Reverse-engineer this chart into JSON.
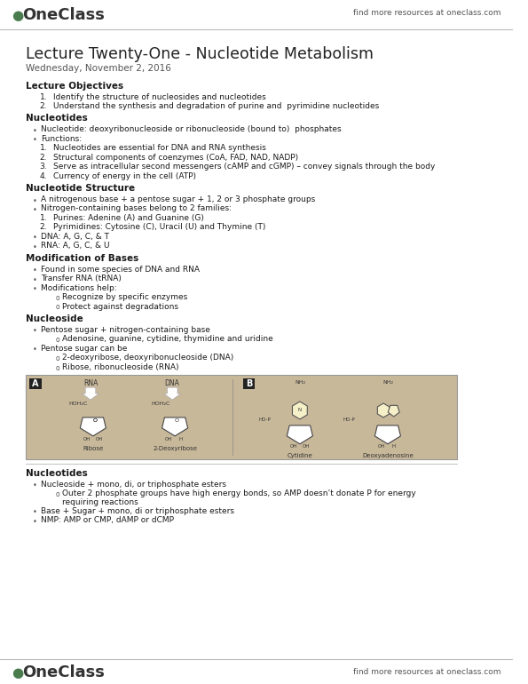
{
  "title": "Lecture Twenty-One - Nucleotide Metabolism",
  "date": "Wednesday, November 2, 2016",
  "header_right": "find more resources at oneclass.com",
  "footer_right": "find more resources at oneclass.com",
  "bg_color": "#ffffff",
  "text_color": "#1a1a1a",
  "logo_color": "#4a7c4e",
  "image_bg": "#c8b89a",
  "sections": [
    {
      "heading": "Lecture Objectives",
      "items": [
        {
          "type": "numbered",
          "num": "1.",
          "text": "Identify the structure of nucleosides and nucleotides"
        },
        {
          "type": "numbered",
          "num": "2.",
          "text": "Understand the synthesis and degradation of purine and  pyrimidine nucleotides"
        }
      ]
    },
    {
      "heading": "Nucleotides",
      "items": [
        {
          "type": "bullet",
          "text": "Nucleotide: deoxyribonucleoside or ribonucleoside (bound to)  phosphates"
        },
        {
          "type": "bullet",
          "text": "Functions:"
        },
        {
          "type": "numbered",
          "num": "1.",
          "text": "Nucleotides are essential for DNA and RNA synthesis"
        },
        {
          "type": "numbered",
          "num": "2.",
          "text": "Structural components of coenzymes (CoA, FAD, NAD, NADP)"
        },
        {
          "type": "numbered",
          "num": "3.",
          "text": "Serve as intracellular second messengers (cAMP and cGMP) – convey signals through the body"
        },
        {
          "type": "numbered",
          "num": "4.",
          "text": "Currency of energy in the cell (ATP)"
        }
      ]
    },
    {
      "heading": "Nucleotide Structure",
      "items": [
        {
          "type": "bullet",
          "text": "A nitrogenous base + a pentose sugar + 1, 2 or 3 phosphate groups"
        },
        {
          "type": "bullet",
          "text": "Nitrogen-containing bases belong to 2 families:"
        },
        {
          "type": "numbered",
          "num": "1.",
          "text": "Purines: Adenine (A) and Guanine (G)"
        },
        {
          "type": "numbered",
          "num": "2.",
          "text": "Pyrimidines: Cytosine (C), Uracil (U) and Thymine (T)"
        },
        {
          "type": "bullet_plain",
          "text": "DNA: A, G, C, & T"
        },
        {
          "type": "bullet_plain",
          "text": "RNA: A, G, C, & U"
        }
      ]
    },
    {
      "heading": "Modification of Bases",
      "items": [
        {
          "type": "bullet",
          "text": "Found in some species of DNA and RNA"
        },
        {
          "type": "bullet",
          "text": "Transfer RNA (tRNA)"
        },
        {
          "type": "bullet",
          "text": "Modifications help:"
        },
        {
          "type": "sub_o",
          "text": "Recognize by specific enzymes"
        },
        {
          "type": "sub_o",
          "text": "Protect against degradations"
        }
      ]
    },
    {
      "heading": "Nucleoside",
      "items": [
        {
          "type": "bullet",
          "text": "Pentose sugar + nitrogen-containing base"
        },
        {
          "type": "sub_o",
          "text": "Adenosine, guanine, cytidine, thymidine and uridine"
        },
        {
          "type": "bullet",
          "text": "Pentose sugar can be"
        },
        {
          "type": "sub_o",
          "text": "2-deoxyribose, deoxyribonucleoside (DNA)"
        },
        {
          "type": "sub_o",
          "text": "Ribose, ribonucleoside (RNA)"
        }
      ]
    },
    {
      "heading": "Nucleotides2",
      "heading_display": "Nucleotides",
      "items": [
        {
          "type": "bullet",
          "text": "Nucleoside + mono, di, or triphosphate esters"
        },
        {
          "type": "sub_o_long",
          "text1": "Outer 2 phosphate groups have high energy bonds, so AMP doesn’t donate P for energy",
          "text2": "requiring reactions"
        },
        {
          "type": "bullet",
          "text": "Base + Sugar + mono, di or triphosphate esters"
        },
        {
          "type": "bullet",
          "text": "NMP: AMP or CMP, dAMP or dCMP"
        }
      ]
    }
  ]
}
